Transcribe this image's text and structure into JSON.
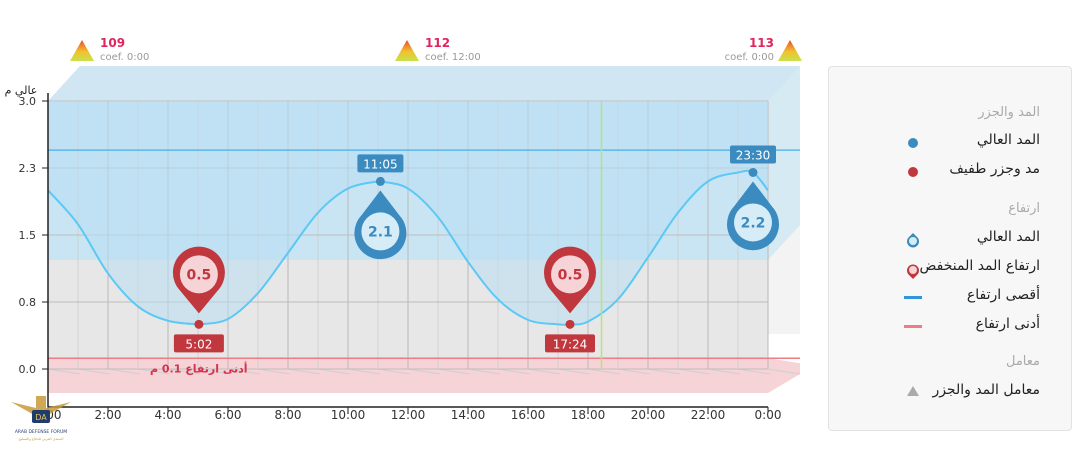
{
  "chart_data": {
    "type": "line",
    "y_axis_title": "عالي م",
    "x_ticks": [
      "0:00",
      "2:00",
      "4:00",
      "6:00",
      "8:00",
      "10:00",
      "12:00",
      "14:00",
      "16:00",
      "18:00",
      "20:00",
      "22:00",
      "0:00"
    ],
    "y_ticks": [
      "3.0",
      "2.3",
      "1.5",
      "0.8",
      "0.0"
    ],
    "ylim": [
      0,
      3.0
    ],
    "xlim_hours": [
      0,
      24
    ],
    "series": [
      {
        "values_hours": [
          0,
          1,
          2,
          3,
          4,
          5,
          5.03,
          6,
          7,
          8,
          9,
          10,
          11,
          11.08,
          12,
          13,
          14,
          15,
          16,
          17,
          17.4,
          18,
          19,
          20,
          21,
          22,
          23,
          23.5,
          24
        ],
        "values_height": [
          2.0,
          1.62,
          1.07,
          0.7,
          0.54,
          0.5,
          0.5,
          0.56,
          0.85,
          1.3,
          1.75,
          2.02,
          2.1,
          2.1,
          2.02,
          1.7,
          1.2,
          0.78,
          0.55,
          0.5,
          0.5,
          0.53,
          0.78,
          1.25,
          1.75,
          2.1,
          2.2,
          2.2,
          2.0
        ]
      }
    ],
    "high_tides": [
      {
        "time": "11:05",
        "hour": 11.08,
        "height": "2.1",
        "value": 2.1
      },
      {
        "time": "23:30",
        "hour": 23.5,
        "height": "2.2",
        "value": 2.2
      }
    ],
    "low_tides": [
      {
        "time": "5:02",
        "hour": 5.03,
        "height": "0.5",
        "value": 0.5
      },
      {
        "time": "17:24",
        "hour": 17.4,
        "height": "0.5",
        "value": 0.5
      }
    ],
    "max_height_line": 2.45,
    "min_height_line": 0.12,
    "band_range": [
      1.22,
      3.0
    ],
    "min_label": {
      "text": "أدنى ارتفاع",
      "value": "0.1",
      "unit": "م"
    },
    "coefficients": [
      {
        "value": "109",
        "label": "coef. 0:00",
        "hour": 0
      },
      {
        "value": "112",
        "label": "coef. 12:00",
        "hour": 12
      },
      {
        "value": "113",
        "label": "coef. 0:00",
        "hour": 24
      }
    ],
    "now_hour": 18.45,
    "colors": {
      "curve": "#5bc8f5",
      "fill": "#b8dff3",
      "high": "#3b8bc0",
      "low": "#c0373e",
      "band": "#c9e5f4",
      "min_zone": "#f6d3d6",
      "grid": "#bdbdbd",
      "coef": "#e0245e",
      "now": "#b9e27d"
    }
  },
  "legend": {
    "section_tides": "المد والجزر",
    "high_tide": "المد العالي",
    "low_tide": "مد وجزر طفيف",
    "section_height": "ارتفاع",
    "high_height": "المد العالي",
    "low_height": "ارتفاع المد المنخفض",
    "max_height": "أقصى ارتفاع",
    "min_height": "أدنى ارتفاع",
    "section_coef": "معامل",
    "coef_item": "معامل المد والجزر"
  },
  "watermark": {
    "abbr": "DA",
    "name": "ARAB DEFENSE FORUM",
    "sub": "المنتدى العربي للدفاع والتسليح"
  }
}
